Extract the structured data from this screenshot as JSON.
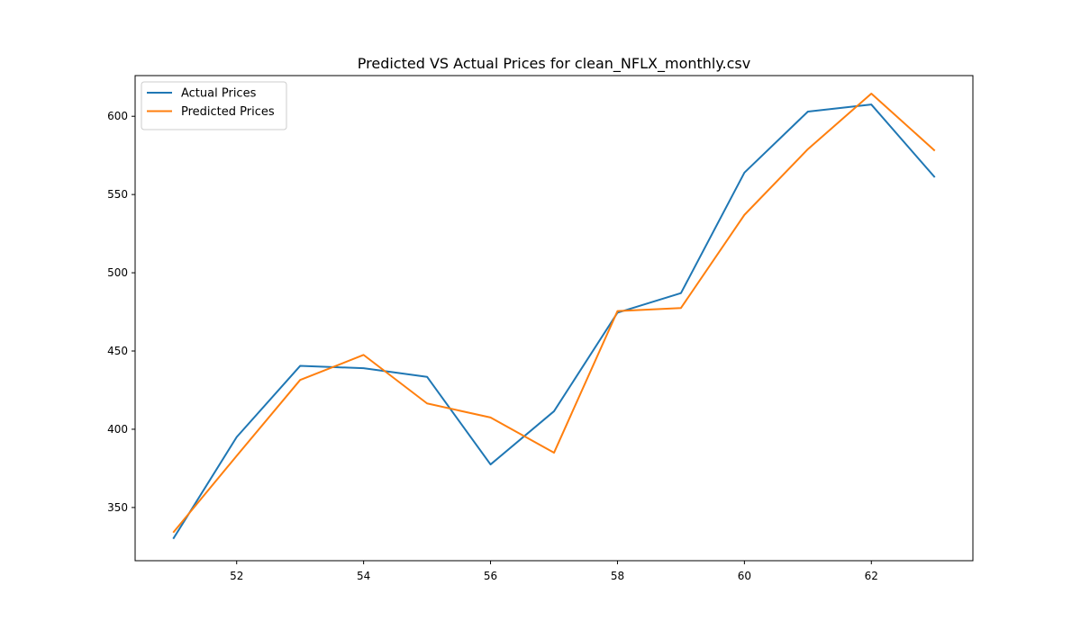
{
  "chart_data": {
    "type": "line",
    "title": "Predicted VS Actual Prices for clean_NFLX_monthly.csv",
    "xlabel": "",
    "ylabel": "",
    "x": [
      51,
      52,
      53,
      54,
      55,
      56,
      57,
      58,
      59,
      60,
      61,
      62,
      63
    ],
    "xlim": [
      50.4,
      63.6
    ],
    "ylim": [
      316,
      626
    ],
    "xticks": [
      52,
      54,
      56,
      58,
      60,
      62
    ],
    "yticks": [
      350,
      400,
      450,
      500,
      550,
      600
    ],
    "grid": false,
    "legend_position": "upper-left",
    "series": [
      {
        "name": "Actual Prices",
        "color": "#1f77b4",
        "values": [
          330,
          395,
          440.5,
          439,
          433.5,
          377.5,
          411.5,
          474.5,
          487,
          564,
          603,
          607.5,
          561
        ]
      },
      {
        "name": "Predicted Prices",
        "color": "#ff7f0e",
        "values": [
          334,
          383,
          431.5,
          447.5,
          416.5,
          407.5,
          385,
          475.5,
          477.5,
          537,
          579,
          614.5,
          578
        ]
      }
    ]
  }
}
